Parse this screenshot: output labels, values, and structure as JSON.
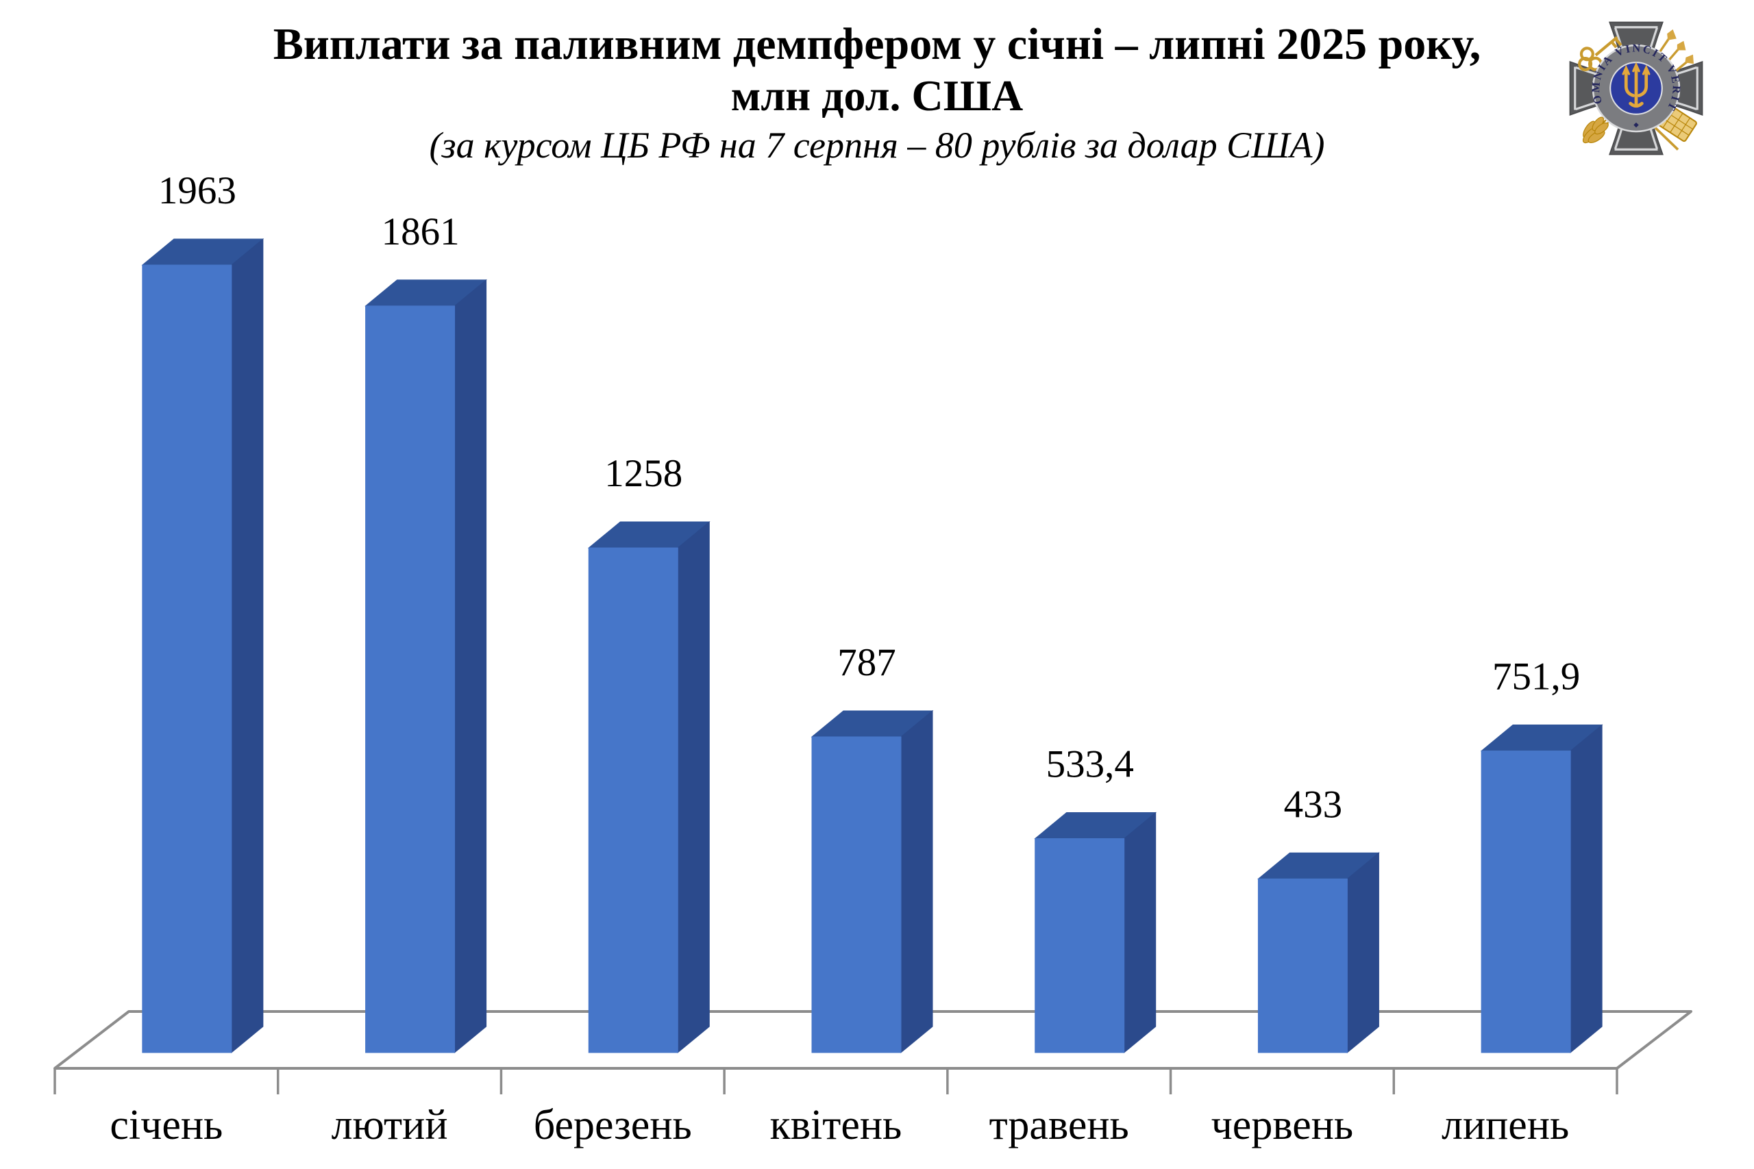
{
  "title": {
    "line1": "Виплати за паливним демпфером у січні – липні 2025 року,",
    "line2": "млн дол. США",
    "subtitle": "(за курсом ЦБ РФ на 7 серпня – 80 рублів за долар США)"
  },
  "logo": {
    "description": "emblem of the Foreign Intelligence Service of Ukraine",
    "motto": "OMNIA VINCIT VERITAS"
  },
  "chart_data": {
    "type": "bar",
    "style": "3d",
    "title": "Виплати за паливним демпфером у січні – липні 2025 року, млн дол. США",
    "xlabel": "",
    "ylabel": "",
    "categories": [
      "січень",
      "лютий",
      "березень",
      "квітень",
      "травень",
      "червень",
      "липень"
    ],
    "values": [
      1963,
      1861,
      1258,
      787,
      533.4,
      433,
      751.9
    ],
    "value_labels": [
      "1963",
      "1861",
      "1258",
      "787",
      "533,4",
      "433",
      "751,9"
    ],
    "ylim": [
      0,
      2100
    ],
    "grid": false,
    "legend": false,
    "colors": {
      "bar_front": "#4676C9",
      "bar_top": "#2F5499",
      "bar_side": "#2B4A8C",
      "axis": "#8C8C8C",
      "label_text": "#000000"
    }
  }
}
